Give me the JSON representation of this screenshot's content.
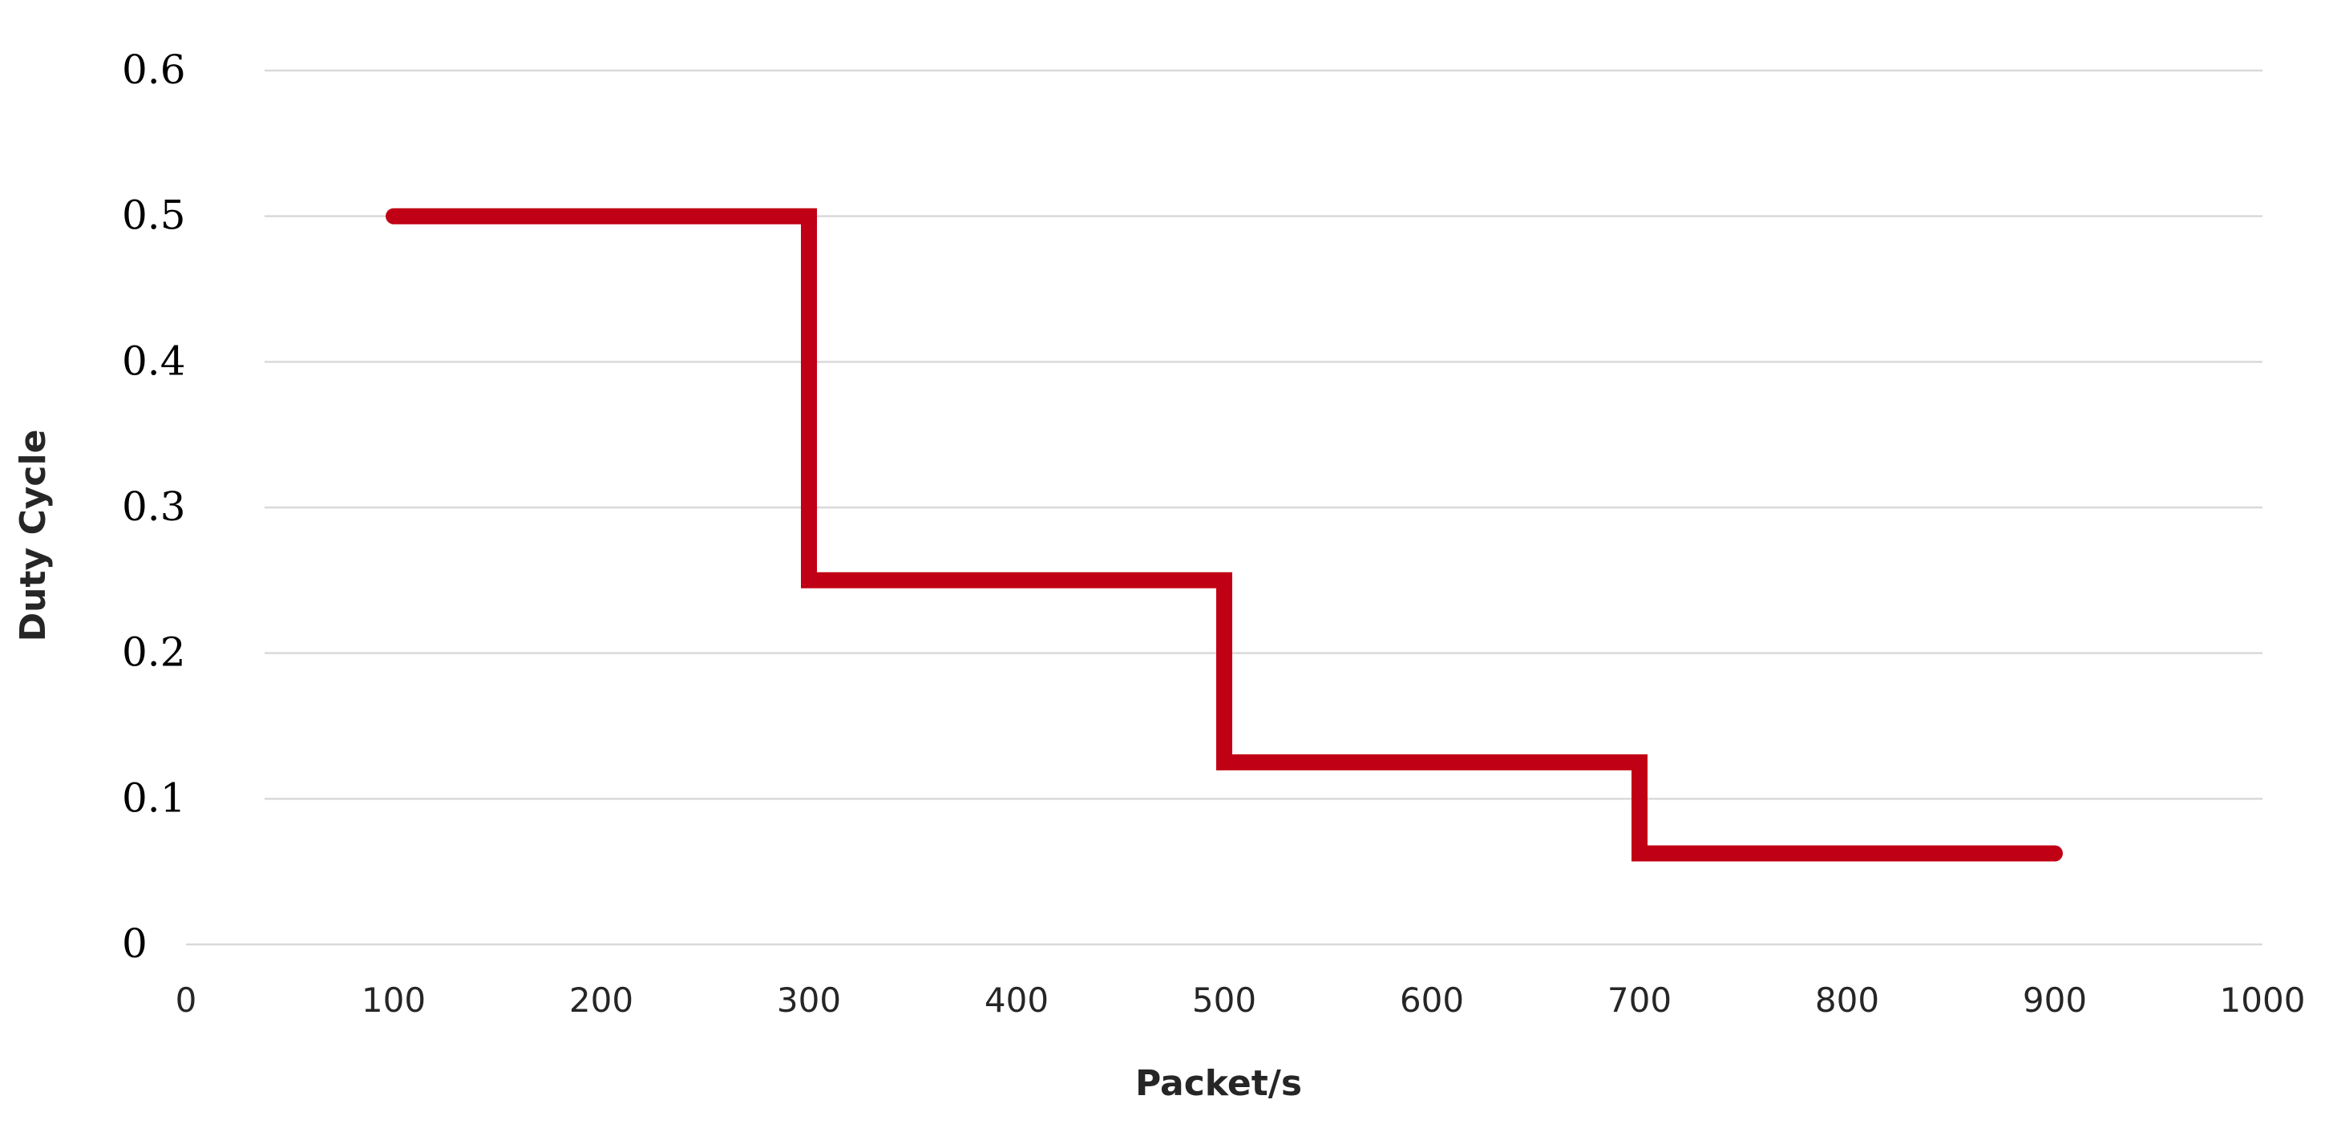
{
  "chart_data": {
    "type": "line",
    "step": true,
    "title": "",
    "xlabel": "Packet/s",
    "ylabel": "Duty Cycle",
    "xlim": [
      0,
      1000
    ],
    "ylim": [
      0,
      0.6
    ],
    "x_ticks": [
      0,
      100,
      200,
      300,
      400,
      500,
      600,
      700,
      800,
      900,
      1000
    ],
    "x_tick_labels": [
      "0",
      "100",
      "200",
      "300",
      "400",
      "500",
      "600",
      "700",
      "800",
      "900",
      "1000"
    ],
    "y_ticks": [
      0,
      0.1,
      0.2,
      0.3,
      0.4,
      0.5,
      0.6
    ],
    "y_tick_labels": [
      "0",
      "0.1",
      "0.2",
      "0.3",
      "0.4",
      "0.5",
      "0.6"
    ],
    "grid": true,
    "legend": "none",
    "series": [
      {
        "color": "#c00014",
        "points": [
          {
            "x": 100,
            "y": 0.5
          },
          {
            "x": 300,
            "y": 0.5
          },
          {
            "x": 300,
            "y": 0.25
          },
          {
            "x": 500,
            "y": 0.25
          },
          {
            "x": 500,
            "y": 0.125
          },
          {
            "x": 700,
            "y": 0.125
          },
          {
            "x": 700,
            "y": 0.0625
          },
          {
            "x": 900,
            "y": 0.0625
          }
        ]
      }
    ]
  }
}
